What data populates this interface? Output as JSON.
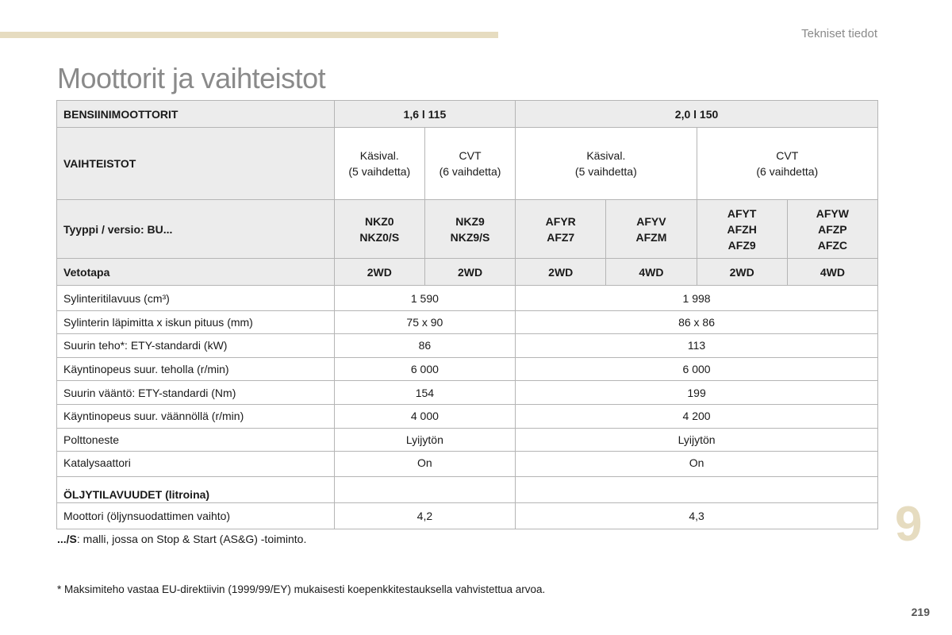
{
  "header": {
    "chapter_title": "Tekniset tiedot",
    "page_title": "Moottorit ja vaihteistot"
  },
  "table": {
    "engines_label": "BENSIINIMOOTTORIT",
    "engine_1": "1,6 l 115",
    "engine_2": "2,0 l 150",
    "gearbox_label": "VAIHTEISTOT",
    "gearboxes": [
      {
        "line1": "Käsival.",
        "line2": "(5 vaihdetta)"
      },
      {
        "line1": "CVT",
        "line2": "(6 vaihdetta)"
      },
      {
        "line1": "Käsival.",
        "line2": "(5 vaihdetta)"
      },
      {
        "line1": "CVT",
        "line2": "(6 vaihdetta)"
      }
    ],
    "type_label": "Tyyppi / versio: BU...",
    "types": [
      {
        "line1": "NKZ0",
        "line2": "NKZ0/S",
        "line3": ""
      },
      {
        "line1": "NKZ9",
        "line2": "NKZ9/S",
        "line3": ""
      },
      {
        "line1": "AFYR",
        "line2": "AFZ7",
        "line3": ""
      },
      {
        "line1": "AFYV",
        "line2": "AFZM",
        "line3": ""
      },
      {
        "line1": "AFYT",
        "line2": "AFZH",
        "line3": "AFZ9"
      },
      {
        "line1": "AFYW",
        "line2": "AFZP",
        "line3": "AFZC"
      }
    ],
    "drive_label": "Vetotapa",
    "drives": [
      "2WD",
      "2WD",
      "2WD",
      "4WD",
      "2WD",
      "4WD"
    ],
    "rows": [
      {
        "label": "Sylinteritilavuus (cm³)",
        "v1": "1 590",
        "v2": "1 998"
      },
      {
        "label": "Sylinterin läpimitta x iskun pituus (mm)",
        "v1": "75 x 90",
        "v2": "86 x 86"
      },
      {
        "label": "Suurin teho*: ETY-standardi (kW)",
        "v1": "86",
        "v2": "113"
      },
      {
        "label": "Käyntinopeus suur. teholla (r/min)",
        "v1": "6 000",
        "v2": "6 000"
      },
      {
        "label": "Suurin vääntö: ETY-standardi (Nm)",
        "v1": "154",
        "v2": "199"
      },
      {
        "label": "Käyntinopeus suur. väännöllä (r/min)",
        "v1": "4 000",
        "v2": "4 200"
      },
      {
        "label": "Polttoneste",
        "v1": "Lyijytön",
        "v2": "Lyijytön"
      },
      {
        "label": "Katalysaattori",
        "v1": "On",
        "v2": "On"
      }
    ],
    "oil": {
      "title": "ÖLJYTILAVUUDET (litroina)",
      "label": "Moottori (öljynsuodattimen vaihto)",
      "v1": "4,2",
      "v2": "4,3"
    }
  },
  "notes": {
    "stop_start_prefix": ".../S",
    "stop_start_text": ": malli, jossa on Stop & Start (AS&G) -toiminto.",
    "max_power": "* Maksimiteho vastaa EU-direktiivin (1999/99/EY) mukaisesti koepenkkitestauksella vahvistettua arvoa."
  },
  "footer": {
    "chapter_number": "9",
    "page_number": "219"
  }
}
